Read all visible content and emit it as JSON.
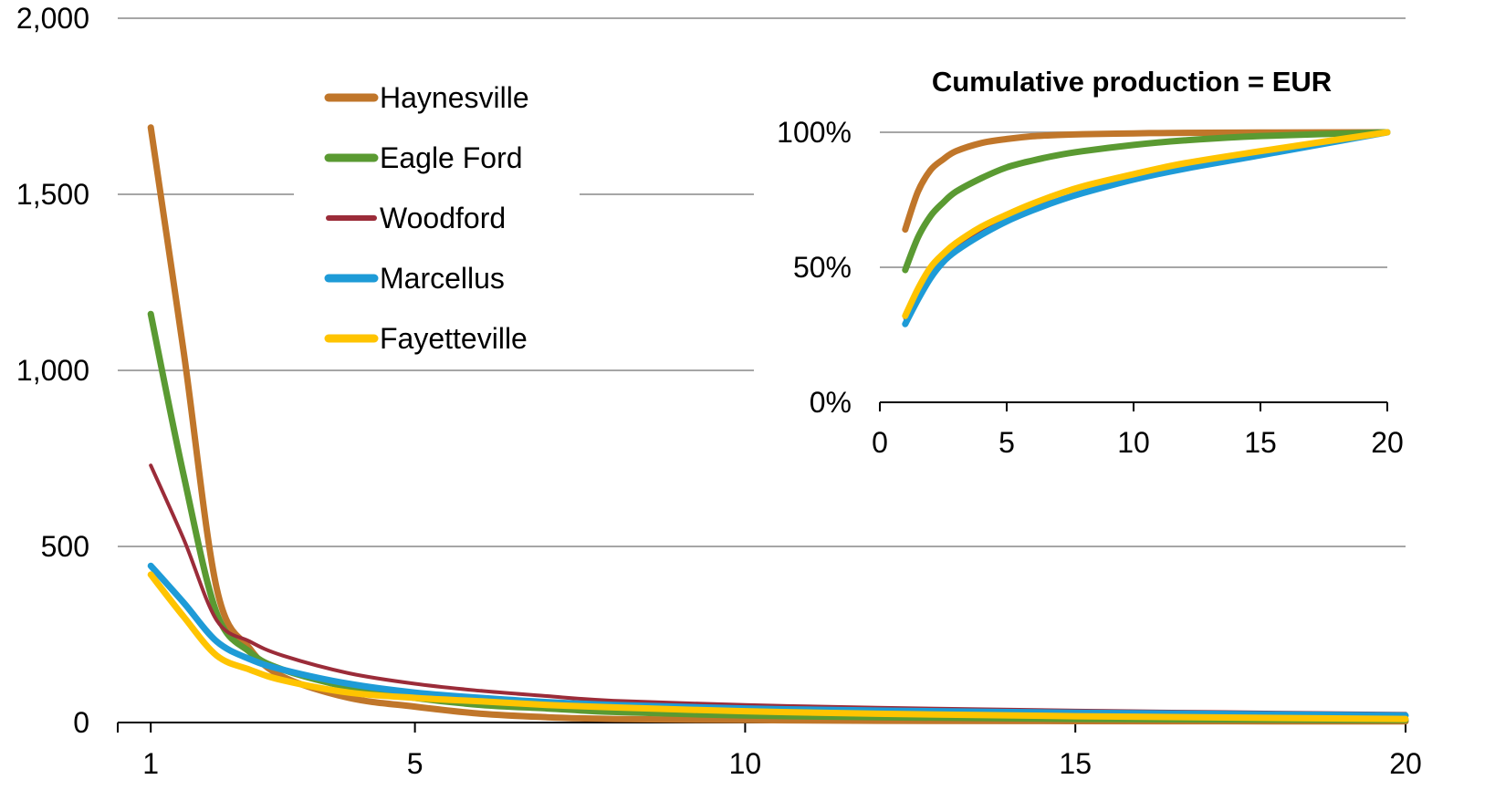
{
  "colors": {
    "Haynesville": "#c0762a",
    "Eagle Ford": "#5a9a32",
    "Woodford": "#9b2c39",
    "Marcellus": "#1e9bd7",
    "Fayetteville": "#ffc400"
  },
  "chart_data": [
    {
      "type": "line",
      "title": "",
      "xlabel": "",
      "ylabel": "",
      "xlim": [
        0.5,
        20
      ],
      "ylim": [
        0,
        2000
      ],
      "x_ticks": [
        "1",
        "5",
        "10",
        "15",
        "20"
      ],
      "y_ticks": [
        "0",
        "500",
        "1,000",
        "1,500",
        "2,000"
      ],
      "grid": true,
      "legend_placement": "top-left",
      "x": [
        1,
        1.5,
        2,
        2.5,
        3,
        4,
        5,
        6,
        7,
        8,
        10,
        12,
        15,
        20
      ],
      "series": [
        {
          "name": "Haynesville",
          "values": [
            1690,
            1050,
            380,
            210,
            130,
            70,
            45,
            25,
            15,
            10,
            7,
            5,
            4,
            3
          ]
        },
        {
          "name": "Eagle Ford",
          "values": [
            1160,
            700,
            310,
            200,
            150,
            100,
            70,
            50,
            40,
            30,
            20,
            15,
            10,
            7
          ]
        },
        {
          "name": "Woodford",
          "values": [
            730,
            520,
            290,
            230,
            190,
            140,
            110,
            90,
            75,
            62,
            50,
            42,
            34,
            25
          ]
        },
        {
          "name": "Marcellus",
          "values": [
            445,
            340,
            230,
            180,
            150,
            110,
            85,
            70,
            58,
            50,
            40,
            34,
            28,
            20
          ]
        },
        {
          "name": "Fayetteville",
          "values": [
            420,
            300,
            190,
            150,
            120,
            85,
            70,
            60,
            50,
            43,
            32,
            25,
            18,
            10
          ]
        }
      ]
    },
    {
      "type": "line",
      "title": "Cumulative production = EUR",
      "xlabel": "",
      "ylabel": "",
      "xlim": [
        0,
        20
      ],
      "ylim": [
        0,
        100
      ],
      "x_ticks": [
        "0",
        "5",
        "10",
        "15",
        "20"
      ],
      "y_ticks": [
        "0%",
        "50%",
        "100%"
      ],
      "grid": true,
      "x": [
        1,
        1.5,
        2,
        2.5,
        3,
        4,
        5,
        6,
        7,
        8,
        10,
        12,
        15,
        20
      ],
      "series": [
        {
          "name": "Haynesville",
          "values": [
            64,
            78,
            86,
            90,
            93,
            96,
            97.5,
            98.5,
            99,
            99.3,
            99.6,
            99.8,
            99.9,
            100
          ]
        },
        {
          "name": "Eagle Ford",
          "values": [
            49,
            61,
            69,
            74,
            78,
            83,
            87,
            89.5,
            91.5,
            93,
            95.3,
            97,
            98.6,
            100
          ]
        },
        {
          "name": "Woodford",
          "values": [
            31,
            40,
            48,
            53,
            57,
            63,
            68,
            72,
            75,
            78,
            83,
            87,
            92,
            100
          ]
        },
        {
          "name": "Marcellus",
          "values": [
            29,
            38,
            46,
            52,
            56,
            62,
            67,
            71,
            74.5,
            77.5,
            82.5,
            86.5,
            91.5,
            100
          ]
        },
        {
          "name": "Fayetteville",
          "values": [
            32,
            42,
            50,
            55,
            59,
            65,
            69.5,
            73.5,
            77,
            80,
            84.5,
            88.5,
            93,
            100
          ]
        }
      ]
    }
  ]
}
